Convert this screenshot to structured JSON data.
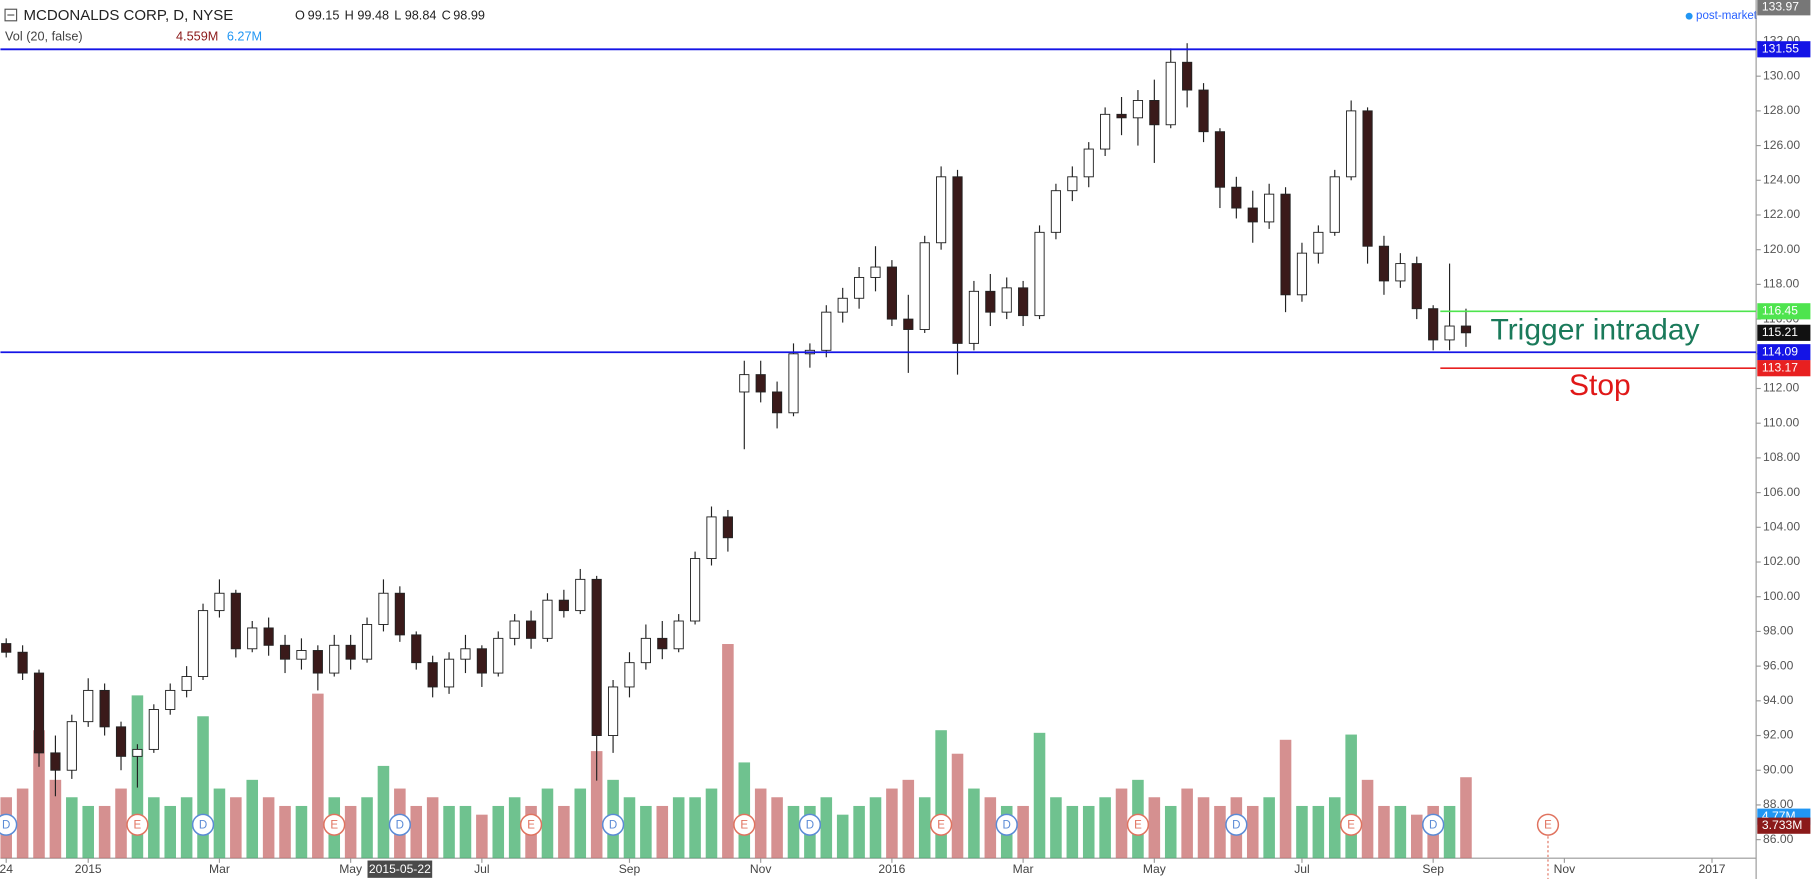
{
  "header": {
    "symbol": "MCDONALDS CORP, D, NYSE",
    "ohlc": [
      {
        "key": "O",
        "value": "99.15"
      },
      {
        "key": "H",
        "value": "99.48"
      },
      {
        "key": "L",
        "value": "98.84"
      },
      {
        "key": "C",
        "value": "98.99"
      }
    ],
    "volume_label": "Vol (20, false)",
    "volume_values": [
      "4.559M",
      "6.27M"
    ],
    "session": "post-market"
  },
  "chart_data": {
    "type": "candlestick",
    "categories": [
      "24",
      null,
      null,
      null,
      null,
      "2015",
      null,
      null,
      null,
      null,
      null,
      null,
      null,
      "Mar",
      null,
      null,
      null,
      null,
      null,
      null,
      null,
      "May",
      null,
      null,
      null,
      null,
      null,
      null,
      null,
      "Jul",
      null,
      null,
      null,
      null,
      null,
      null,
      null,
      null,
      "Sep",
      null,
      null,
      null,
      null,
      null,
      null,
      null,
      "Nov",
      null,
      null,
      null,
      null,
      null,
      null,
      null,
      "2016",
      null,
      null,
      null,
      null,
      null,
      null,
      null,
      "Mar",
      null,
      null,
      null,
      null,
      null,
      null,
      null,
      "May",
      null,
      null,
      null,
      null,
      null,
      null,
      null,
      null,
      "Jul",
      null,
      null,
      null,
      null,
      null,
      null,
      null,
      "Sep",
      null,
      null,
      null,
      null,
      null,
      null,
      null,
      "Nov",
      null,
      null,
      null,
      null,
      null,
      null,
      null,
      null,
      "2017",
      null
    ],
    "crosshair_label": "2015-05-22",
    "open": [
      97.3,
      96.8,
      95.6,
      91.0,
      90.0,
      92.8,
      94.6,
      92.5,
      90.8,
      91.2,
      93.5,
      94.6,
      95.4,
      99.2,
      100.2,
      97.0,
      98.2,
      97.2,
      96.4,
      96.9,
      95.6,
      97.2,
      96.4,
      98.4,
      100.2,
      97.8,
      96.2,
      94.8,
      96.4,
      97.0,
      95.6,
      97.6,
      98.6,
      97.6,
      99.8,
      99.2,
      101.0,
      92.0,
      94.8,
      96.2,
      97.6,
      97.0,
      98.6,
      102.2,
      104.6,
      111.8,
      112.8,
      111.8,
      110.6,
      114.0,
      114.2,
      116.4,
      117.2,
      118.4,
      119.0,
      116.0,
      115.4,
      120.4,
      124.2,
      114.6,
      117.6,
      116.4,
      117.8,
      116.2,
      121.0,
      123.4,
      124.2,
      125.8,
      127.8,
      127.6,
      128.6,
      127.2,
      130.8,
      129.2,
      126.8,
      123.6,
      122.4,
      121.6,
      123.2,
      117.4,
      119.8,
      121.0,
      124.2,
      128.0,
      120.2,
      118.2,
      119.2,
      116.6,
      114.8,
      115.6,
      null,
      null,
      null,
      null,
      null,
      null,
      null,
      null,
      null,
      null,
      null,
      null,
      null,
      null,
      null,
      null
    ],
    "high": [
      97.6,
      97.2,
      95.8,
      92.0,
      93.2,
      95.3,
      95.0,
      92.8,
      91.5,
      93.8,
      95.0,
      96.0,
      99.6,
      101.0,
      100.4,
      98.6,
      98.8,
      97.8,
      97.6,
      97.2,
      97.8,
      97.8,
      98.8,
      101.0,
      100.6,
      98.0,
      96.6,
      96.8,
      97.8,
      97.2,
      98.0,
      99.0,
      99.2,
      100.2,
      100.4,
      101.6,
      101.2,
      95.2,
      96.8,
      98.4,
      98.6,
      99.0,
      102.6,
      105.2,
      105.0,
      113.6,
      113.6,
      112.4,
      114.6,
      114.6,
      116.8,
      117.8,
      119.0,
      120.2,
      119.4,
      117.4,
      120.8,
      124.8,
      124.6,
      118.2,
      118.6,
      118.4,
      118.2,
      121.4,
      123.8,
      124.8,
      126.2,
      128.2,
      128.8,
      129.2,
      129.8,
      131.6,
      131.9,
      129.6,
      127.0,
      124.2,
      123.4,
      123.8,
      123.6,
      120.4,
      121.4,
      124.6,
      128.6,
      128.2,
      120.8,
      119.8,
      119.6,
      116.8,
      119.2,
      116.6,
      null,
      null,
      null,
      null,
      null,
      null,
      null,
      null,
      null,
      null,
      null,
      null,
      null,
      null,
      null,
      null
    ],
    "low": [
      96.5,
      95.2,
      90.2,
      88.5,
      89.5,
      92.5,
      92.0,
      90.0,
      89.0,
      91.0,
      93.2,
      94.2,
      95.2,
      98.8,
      96.5,
      96.8,
      96.6,
      95.6,
      95.8,
      94.6,
      95.4,
      95.8,
      96.2,
      98.0,
      97.4,
      95.8,
      94.2,
      94.4,
      95.6,
      94.8,
      95.4,
      97.2,
      97.0,
      97.4,
      98.8,
      99.0,
      89.4,
      91.0,
      94.2,
      95.8,
      96.4,
      96.8,
      98.4,
      101.8,
      102.6,
      108.5,
      111.2,
      109.7,
      110.4,
      113.2,
      113.8,
      115.8,
      116.6,
      117.6,
      115.6,
      112.9,
      115.2,
      120.0,
      112.8,
      114.2,
      115.6,
      116.0,
      115.6,
      116.0,
      120.6,
      122.8,
      123.6,
      125.4,
      126.6,
      126.0,
      125.0,
      127.0,
      128.2,
      126.2,
      122.4,
      121.8,
      120.4,
      121.2,
      116.4,
      117.0,
      119.2,
      120.8,
      124.0,
      119.2,
      117.4,
      117.8,
      116.0,
      114.2,
      114.2,
      114.4,
      null,
      null,
      null,
      null,
      null,
      null,
      null,
      null,
      null,
      null,
      null,
      null,
      null,
      null,
      null,
      null
    ],
    "close": [
      96.8,
      95.6,
      91.0,
      90.0,
      92.8,
      94.6,
      92.5,
      90.8,
      91.2,
      93.5,
      94.6,
      95.4,
      99.2,
      100.2,
      97.0,
      98.2,
      97.2,
      96.4,
      96.9,
      95.6,
      97.2,
      96.4,
      98.4,
      100.2,
      97.8,
      96.2,
      94.8,
      96.4,
      97.0,
      95.6,
      97.6,
      98.6,
      97.6,
      99.8,
      99.2,
      101.0,
      92.0,
      94.8,
      96.2,
      97.6,
      97.0,
      98.6,
      102.2,
      104.6,
      103.4,
      112.8,
      111.8,
      110.6,
      114.0,
      114.2,
      116.4,
      117.2,
      118.4,
      119.0,
      116.0,
      115.4,
      120.4,
      124.2,
      114.6,
      117.6,
      116.4,
      117.8,
      116.2,
      121.0,
      123.4,
      124.2,
      125.8,
      127.8,
      127.6,
      128.6,
      127.2,
      130.8,
      129.2,
      126.8,
      123.6,
      122.4,
      121.6,
      123.2,
      117.4,
      119.8,
      121.0,
      124.2,
      128.0,
      120.2,
      118.2,
      119.2,
      116.6,
      114.8,
      115.6,
      115.21,
      null,
      null,
      null,
      null,
      null,
      null,
      null,
      null,
      null,
      null,
      null,
      null,
      null,
      null,
      null,
      null
    ],
    "up_color": "#ffffff",
    "down_color": "#3a1a1a",
    "wick_color": "#222222",
    "ylim": [
      84.93,
      134.39
    ],
    "yticks": [
      {
        "value": 86,
        "label": "86.00"
      },
      {
        "value": 88,
        "label": "88.00"
      },
      {
        "value": 90,
        "label": "90.00"
      },
      {
        "value": 92,
        "label": "92.00"
      },
      {
        "value": 94,
        "label": "94.00"
      },
      {
        "value": 96,
        "label": "96.00"
      },
      {
        "value": 98,
        "label": "98.00"
      },
      {
        "value": 100,
        "label": "100.00"
      },
      {
        "value": 102,
        "label": "102.00"
      },
      {
        "value": 104,
        "label": "104.00"
      },
      {
        "value": 106,
        "label": "106.00"
      },
      {
        "value": 108,
        "label": "108.00"
      },
      {
        "value": 110,
        "label": "110.00"
      },
      {
        "value": 112,
        "label": "112.00"
      },
      {
        "value": 114,
        "label": "114.00"
      },
      {
        "value": 116,
        "label": "116.00"
      },
      {
        "value": 118,
        "label": "118.00"
      },
      {
        "value": 120,
        "label": "120.00"
      },
      {
        "value": 122,
        "label": "122.00"
      },
      {
        "value": 124,
        "label": "124.00"
      },
      {
        "value": 126,
        "label": "126.00"
      },
      {
        "value": 128,
        "label": "128.00"
      },
      {
        "value": 130,
        "label": "130.00"
      },
      {
        "value": 132,
        "label": "132.00"
      }
    ],
    "grid": false,
    "volume": {
      "values": [
        7,
        8,
        14.7,
        9,
        7,
        6,
        6,
        8,
        18.7,
        7,
        6,
        7,
        16.3,
        8,
        7,
        9,
        7,
        6,
        6,
        18.9,
        7,
        6,
        7,
        10.6,
        8,
        6,
        7,
        6,
        6,
        5,
        6,
        7,
        6,
        8,
        6,
        8,
        12.3,
        9,
        7,
        6,
        6,
        7,
        7,
        8,
        24.6,
        11,
        8,
        7,
        6,
        6,
        7,
        5,
        6,
        7,
        8,
        9,
        7,
        14.7,
        12,
        8,
        7,
        6,
        6,
        14.4,
        7,
        6,
        6,
        7,
        8,
        9,
        7,
        6,
        8,
        7,
        6,
        7,
        6,
        7,
        13.6,
        6,
        6,
        7,
        14.2,
        9,
        6,
        6,
        5,
        6,
        6,
        9.3,
        null,
        null,
        null,
        null,
        null,
        null,
        null,
        null,
        null,
        null,
        null,
        null,
        null,
        null,
        null,
        null
      ],
      "ylim": [
        0,
        26
      ],
      "up_color": "#3fae6a",
      "down_color": "#c76b6b",
      "badges": [
        {
          "value": 4.77,
          "label": "4.77M",
          "color": "#2196f3"
        },
        {
          "value": 3.733,
          "label": "3.733M",
          "color": "#8b1a1a"
        }
      ]
    },
    "events": [
      "D",
      null,
      null,
      null,
      null,
      null,
      null,
      null,
      "E",
      null,
      null,
      null,
      "D",
      null,
      null,
      null,
      null,
      null,
      null,
      null,
      "E",
      null,
      null,
      null,
      "D",
      null,
      null,
      null,
      null,
      null,
      null,
      null,
      "E",
      null,
      null,
      null,
      null,
      "D",
      null,
      null,
      null,
      null,
      null,
      null,
      null,
      "E",
      null,
      null,
      null,
      "D",
      null,
      null,
      null,
      null,
      null,
      null,
      null,
      "E",
      null,
      null,
      null,
      "D",
      null,
      null,
      null,
      null,
      null,
      null,
      null,
      "E",
      null,
      null,
      null,
      null,
      null,
      "D",
      null,
      null,
      null,
      null,
      null,
      null,
      "E",
      null,
      null,
      null,
      null,
      "D",
      null,
      null,
      null,
      null,
      null,
      null,
      "E",
      null,
      null,
      null,
      null,
      null,
      null,
      null,
      null,
      null,
      null,
      null
    ],
    "price_lines": [
      {
        "value": 131.55,
        "color": "#1414e6",
        "extend": "full"
      },
      {
        "value": 114.09,
        "color": "#1414e6",
        "extend": "full"
      },
      {
        "value": 116.45,
        "color": "#4ee44e",
        "extend": "right"
      },
      {
        "value": 113.17,
        "color": "#e82020",
        "extend": "right"
      }
    ],
    "price_badges": [
      {
        "value": 133.97,
        "color": "#777777"
      },
      {
        "value": 115.21,
        "color": "#111111"
      }
    ],
    "annotations": [
      {
        "text": "Trigger intraday",
        "color": "#1a7a5a"
      },
      {
        "text": "Stop",
        "color": "#e01818"
      }
    ]
  }
}
